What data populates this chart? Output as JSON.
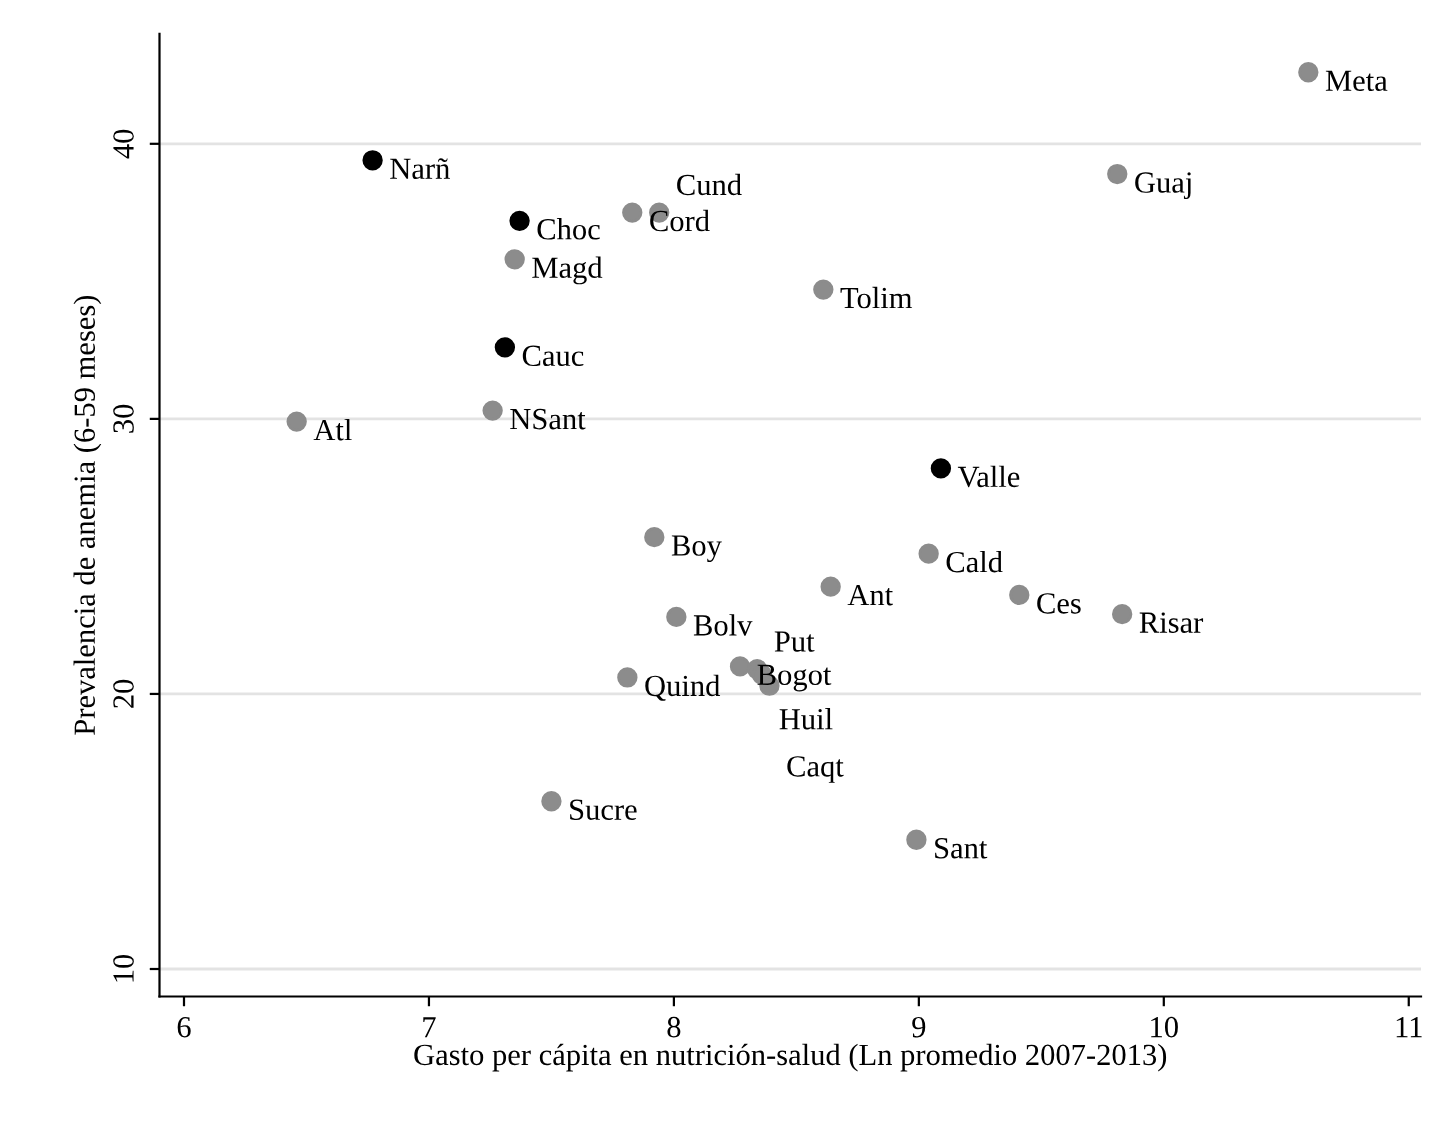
{
  "chart_data": {
    "type": "scatter",
    "xlabel": "Gasto per cápita en nutrición-salud (Ln promedio 2007-2013)",
    "ylabel": "Prevalencia de anemia (6-59 meses)",
    "xlim": [
      5.9,
      11.05
    ],
    "ylim": [
      9,
      44
    ],
    "xticks": [
      6,
      7,
      8,
      9,
      10,
      11
    ],
    "yticks": [
      10,
      20,
      30,
      40
    ],
    "grid": "y",
    "marker": "circle",
    "series": [
      {
        "color": "#8c8c8c",
        "x": [
          10.59,
          7.35,
          7.26,
          7.83,
          7.94,
          8.61,
          6.46,
          9.81,
          9.04,
          8.64,
          9.41,
          9.83,
          8.99,
          7.5,
          7.92,
          8.01,
          7.81,
          8.27,
          8.34,
          8.36,
          8.39
        ],
        "values": [
          42.6,
          35.8,
          30.3,
          37.5,
          37.5,
          34.7,
          29.9,
          38.9,
          25.1,
          23.9,
          23.6,
          22.9,
          14.7,
          16.1,
          25.7,
          22.8,
          20.6,
          21.0,
          20.9,
          20.7,
          20.3
        ]
      },
      {
        "color": "#000000",
        "x": [
          6.77,
          7.37,
          7.31,
          9.09
        ],
        "values": [
          39.4,
          37.2,
          32.6,
          28.2
        ]
      }
    ],
    "annotations": [
      {
        "text": "Meta",
        "x": 10.59,
        "y": 42.6
      },
      {
        "text": "Magd",
        "x": 7.35,
        "y": 35.8
      },
      {
        "text": "NSant",
        "x": 7.26,
        "y": 30.3
      },
      {
        "text": "Cord",
        "x": 7.83,
        "y": 37.5
      },
      {
        "text": "Cund",
        "x": 7.94,
        "y": 37.5
      },
      {
        "text": "Tolim",
        "x": 8.61,
        "y": 34.7
      },
      {
        "text": "Atl",
        "x": 6.46,
        "y": 29.9
      },
      {
        "text": "Guaj",
        "x": 9.81,
        "y": 38.9
      },
      {
        "text": "Cald",
        "x": 9.04,
        "y": 25.1
      },
      {
        "text": "Ant",
        "x": 8.64,
        "y": 23.9
      },
      {
        "text": "Ces",
        "x": 9.41,
        "y": 23.6
      },
      {
        "text": "Risar",
        "x": 9.83,
        "y": 22.9
      },
      {
        "text": "Sant",
        "x": 8.99,
        "y": 14.7
      },
      {
        "text": "Sucre",
        "x": 7.5,
        "y": 16.1
      },
      {
        "text": "Boy",
        "x": 7.92,
        "y": 25.7
      },
      {
        "text": "Bolv",
        "x": 8.01,
        "y": 22.8
      },
      {
        "text": "Quind",
        "x": 7.81,
        "y": 20.6
      },
      {
        "text": "Bogot",
        "x": 8.27,
        "y": 21.0
      },
      {
        "text": "Put",
        "x": 8.34,
        "y": 20.9
      },
      {
        "text": "Huil",
        "x": 8.36,
        "y": 20.7
      },
      {
        "text": "Caqt",
        "x": 8.39,
        "y": 20.3
      },
      {
        "text": "Narñ",
        "x": 6.77,
        "y": 39.4
      },
      {
        "text": "Choc",
        "x": 7.37,
        "y": 37.2
      },
      {
        "text": "Cauc",
        "x": 7.31,
        "y": 32.6
      },
      {
        "text": "Valle",
        "x": 9.09,
        "y": 28.2
      }
    ]
  }
}
